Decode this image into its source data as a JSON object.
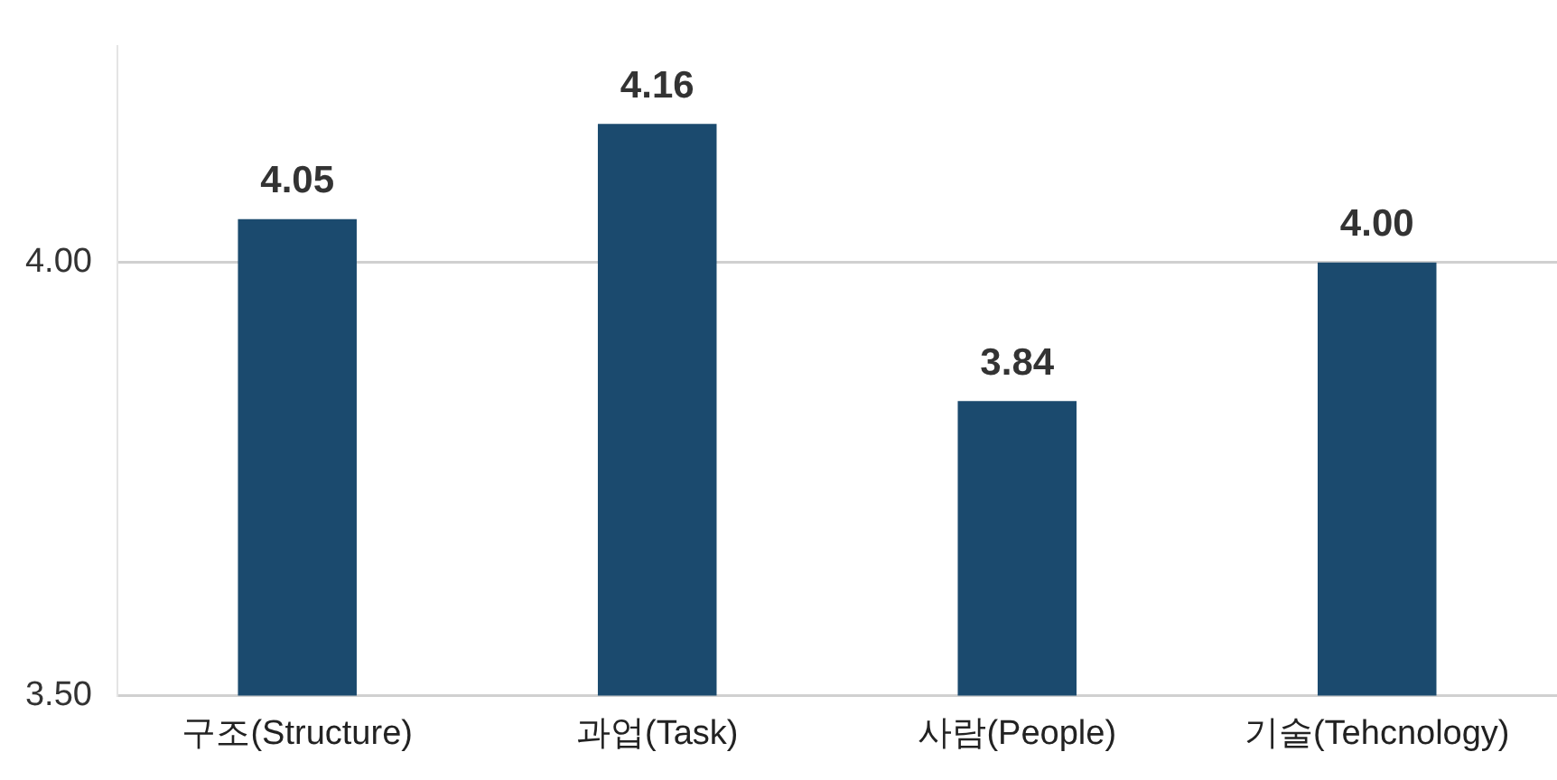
{
  "chart_data": {
    "type": "bar",
    "categories": [
      "구조(Structure)",
      "과업(Task)",
      "사람(People)",
      "기술(Tehcnology)"
    ],
    "values": [
      4.05,
      4.16,
      3.84,
      4.0
    ],
    "color": "#1b4a6e",
    "value_labels": [
      "4.05",
      "4.16",
      "3.84",
      "4.00"
    ],
    "ylim": [
      3.5,
      4.25
    ],
    "yticks": [
      {
        "value": 3.5,
        "label": "3.50"
      },
      {
        "value": 4.0,
        "label": "4.00"
      }
    ],
    "grid": "y",
    "legend": false
  }
}
